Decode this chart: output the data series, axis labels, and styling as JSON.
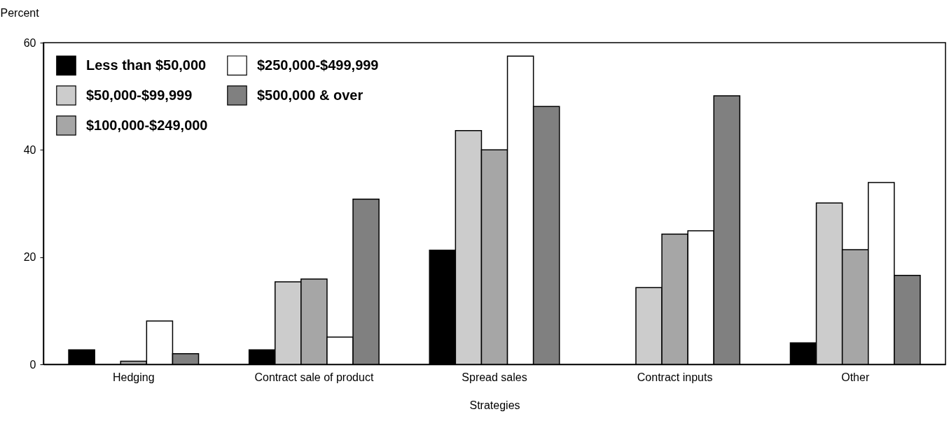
{
  "chart_data": {
    "type": "bar",
    "xlabel": "Strategies",
    "ylabel": "Percent",
    "categories": [
      "Hedging",
      "Contract sale of product",
      "Spread sales",
      "Contract inputs",
      "Other"
    ],
    "series": [
      {
        "name": "Less than $50,000",
        "color": "#000000",
        "values": [
          2.7,
          2.7,
          21.3,
          0,
          4.0
        ]
      },
      {
        "name": "$50,000-$99,999",
        "color": "#cccccc",
        "values": [
          0,
          15.4,
          43.6,
          14.3,
          30.1
        ]
      },
      {
        "name": "$100,000-$249,000",
        "color": "#a6a6a6",
        "values": [
          0.6,
          15.9,
          40.0,
          24.3,
          21.4
        ]
      },
      {
        "name": "$250,000-$499,999",
        "color": "#ffffff",
        "values": [
          8.1,
          5.1,
          57.5,
          24.9,
          33.9
        ]
      },
      {
        "name": "$500,000 & over",
        "color": "#808080",
        "values": [
          2.0,
          30.8,
          48.1,
          50.1,
          16.6
        ]
      }
    ],
    "ylim": [
      0,
      60
    ],
    "yticks": [
      0,
      20,
      40,
      60
    ],
    "grid": false,
    "legend": "top left"
  }
}
